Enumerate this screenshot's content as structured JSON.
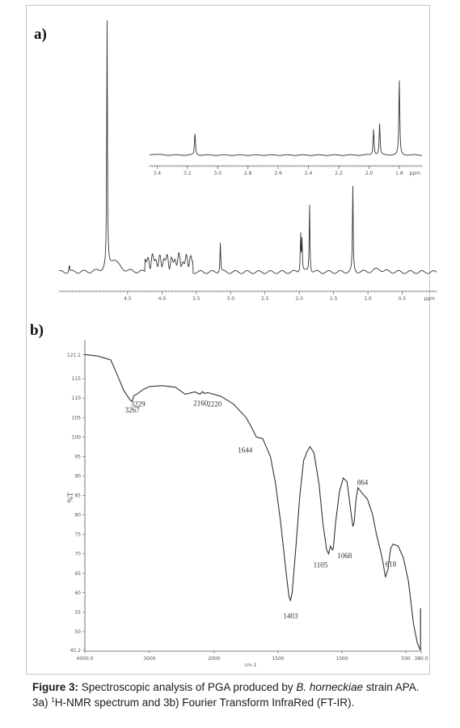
{
  "figure": {
    "panel_a_label": "a)",
    "panel_b_label": "b)",
    "caption": {
      "label": "Figure 3:",
      "part1": " Spectroscopic analysis of PGA produced by ",
      "species": "B. horneckiae",
      "part2": " strain APA. 3a) ",
      "superscript": "1",
      "part3": "H-NMR spectrum and 3b) Fourier Transform InfraRed (FT-IR)."
    }
  },
  "chart_data": [
    {
      "type": "line",
      "panel": "a-main",
      "xlabel": "ppm",
      "xlim": [
        5.5,
        0.0
      ],
      "x_ticks": [
        "4.5",
        "4.0",
        "3.5",
        "3.0",
        "2.5",
        "2.0",
        "1.5",
        "1.0",
        "0.5"
      ],
      "peaks": [
        {
          "x": 5.35,
          "h": 0.03
        },
        {
          "x": 4.8,
          "h": 1.0
        },
        {
          "x": 3.15,
          "h": 0.12
        },
        {
          "x": 1.98,
          "h": 0.16
        },
        {
          "x": 1.96,
          "h": 0.13
        },
        {
          "x": 1.85,
          "h": 0.28
        },
        {
          "x": 1.22,
          "h": 0.35
        }
      ]
    },
    {
      "type": "line",
      "panel": "a-inset",
      "xlabel": "ppm",
      "xlim": [
        3.45,
        1.65
      ],
      "x_ticks": [
        "3.4",
        "3.2",
        "3.0",
        "2.8",
        "2.6",
        "2.4",
        "2.2",
        "2.0",
        "1.8"
      ],
      "peaks": [
        {
          "x": 3.15,
          "h": 0.22
        },
        {
          "x": 1.97,
          "h": 0.26
        },
        {
          "x": 1.93,
          "h": 0.31
        },
        {
          "x": 1.8,
          "h": 0.74
        }
      ]
    },
    {
      "type": "line",
      "panel": "b",
      "xlabel": "cm-1",
      "ylabel": "%T",
      "xlim": [
        4000,
        380
      ],
      "ylim": [
        45,
        125
      ],
      "x_ticks": [
        "4000.0",
        "3000",
        "2000",
        "1500",
        "1000",
        "500",
        "380.0"
      ],
      "y_ticks": [
        "121.1",
        "115",
        "110",
        "105",
        "100",
        "95",
        "90",
        "85",
        "80",
        "75",
        "70",
        "65",
        "60",
        "55",
        "50",
        "45.2"
      ],
      "points": [
        [
          4000,
          121.2
        ],
        [
          3800,
          120.8
        ],
        [
          3600,
          119.8
        ],
        [
          3500,
          116
        ],
        [
          3400,
          112
        ],
        [
          3300,
          109.5
        ],
        [
          3267,
          109.2
        ],
        [
          3245,
          110.5
        ],
        [
          3229,
          110.8
        ],
        [
          3210,
          110.9
        ],
        [
          3100,
          112.2
        ],
        [
          3000,
          113
        ],
        [
          2800,
          113.2
        ],
        [
          2600,
          112.8
        ],
        [
          2450,
          111
        ],
        [
          2300,
          111.6
        ],
        [
          2220,
          111
        ],
        [
          2180,
          111.7
        ],
        [
          2160,
          111.2
        ],
        [
          2100,
          111.4
        ],
        [
          1950,
          110.5
        ],
        [
          1850,
          108.5
        ],
        [
          1750,
          105
        ],
        [
          1700,
          102
        ],
        [
          1670,
          100
        ],
        [
          1644,
          99.8
        ],
        [
          1620,
          99.6
        ],
        [
          1600,
          98
        ],
        [
          1560,
          95
        ],
        [
          1520,
          88
        ],
        [
          1480,
          78
        ],
        [
          1440,
          66
        ],
        [
          1415,
          59
        ],
        [
          1403,
          58
        ],
        [
          1390,
          60
        ],
        [
          1360,
          72
        ],
        [
          1330,
          85
        ],
        [
          1300,
          94
        ],
        [
          1270,
          96.5
        ],
        [
          1250,
          97.5
        ],
        [
          1220,
          96
        ],
        [
          1180,
          88
        ],
        [
          1150,
          78
        ],
        [
          1120,
          71
        ],
        [
          1105,
          70
        ],
        [
          1090,
          72
        ],
        [
          1075,
          71
        ],
        [
          1068,
          71.4
        ],
        [
          1050,
          78
        ],
        [
          1020,
          86
        ],
        [
          990,
          89.5
        ],
        [
          960,
          88.5
        ],
        [
          935,
          82
        ],
        [
          915,
          77
        ],
        [
          905,
          78
        ],
        [
          890,
          84
        ],
        [
          875,
          87
        ],
        [
          864,
          86.5
        ],
        [
          840,
          85.5
        ],
        [
          800,
          84
        ],
        [
          760,
          80
        ],
        [
          730,
          75
        ],
        [
          700,
          71
        ],
        [
          680,
          68
        ],
        [
          660,
          64
        ],
        [
          640,
          66
        ],
        [
          625,
          70
        ],
        [
          618,
          71.5
        ],
        [
          600,
          72.5
        ],
        [
          560,
          72
        ],
        [
          520,
          69
        ],
        [
          480,
          63
        ],
        [
          440,
          52
        ],
        [
          410,
          47
        ],
        [
          390,
          45.5
        ],
        [
          380,
          45.3
        ]
      ],
      "annotations": [
        {
          "x": 3267,
          "y": 109.2,
          "text": "3267"
        },
        {
          "x": 3229,
          "y": 110.8,
          "text": "3229"
        },
        {
          "x": 2160,
          "y": 111.2,
          "text": "2160"
        },
        {
          "x": 2220,
          "y": 111.0,
          "text": "2220"
        },
        {
          "x": 1644,
          "y": 99.8,
          "text": "1644"
        },
        {
          "x": 1403,
          "y": 58.0,
          "text": "1403"
        },
        {
          "x": 1105,
          "y": 70.0,
          "text": "1105"
        },
        {
          "x": 1068,
          "y": 71.4,
          "text": "1068"
        },
        {
          "x": 864,
          "y": 86.5,
          "text": "864"
        },
        {
          "x": 618,
          "y": 71.5,
          "text": "618"
        }
      ]
    }
  ]
}
